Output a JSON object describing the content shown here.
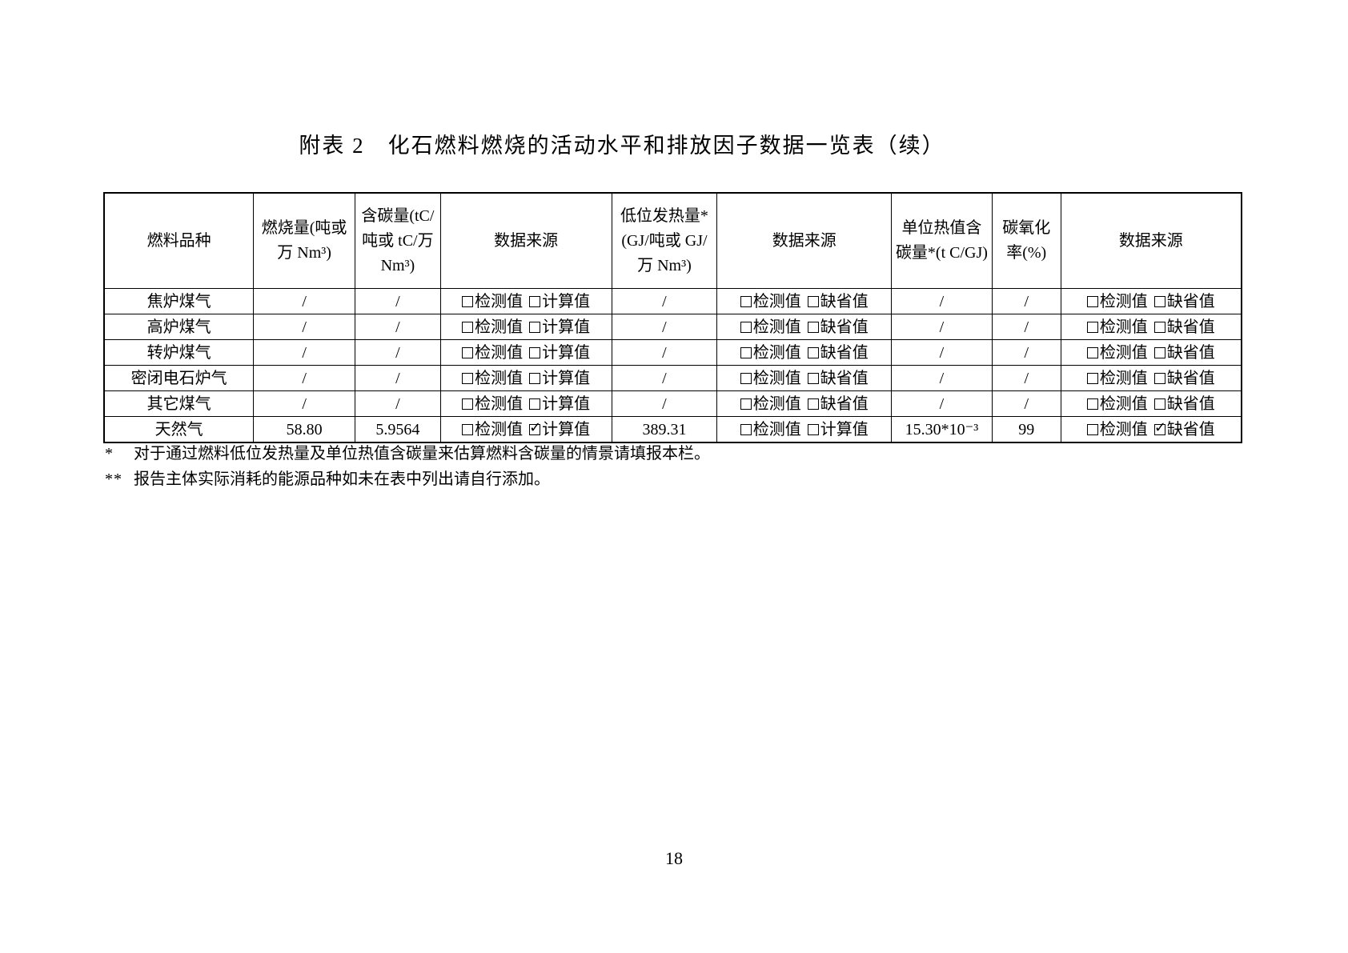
{
  "page": {
    "title": "附表 2　化石燃料燃烧的活动水平和排放因子数据一览表（续）",
    "page_number": "18"
  },
  "table": {
    "headers": [
      "燃料品种",
      "燃烧量(吨或万 Nm³)",
      "含碳量(tC/吨或 tC/万 Nm³)",
      "数据来源",
      "低位发热量*(GJ/吨或 GJ/万 Nm³)",
      "数据来源",
      "单位热值含碳量*(t C/GJ)",
      "碳氧化率(%)",
      "数据来源"
    ],
    "rows": [
      {
        "cells": [
          {
            "type": "text",
            "value": "焦炉煤气"
          },
          {
            "type": "text",
            "value": "/"
          },
          {
            "type": "text",
            "value": "/"
          },
          {
            "type": "checks",
            "options": [
              {
                "label": "检测值",
                "checked": false
              },
              {
                "label": "计算值",
                "checked": false
              }
            ]
          },
          {
            "type": "text",
            "value": "/"
          },
          {
            "type": "checks",
            "options": [
              {
                "label": "检测值",
                "checked": false
              },
              {
                "label": "缺省值",
                "checked": false
              }
            ]
          },
          {
            "type": "text",
            "value": "/"
          },
          {
            "type": "text",
            "value": "/"
          },
          {
            "type": "checks",
            "options": [
              {
                "label": "检测值",
                "checked": false
              },
              {
                "label": "缺省值",
                "checked": false
              }
            ]
          }
        ]
      },
      {
        "cells": [
          {
            "type": "text",
            "value": "高炉煤气"
          },
          {
            "type": "text",
            "value": "/"
          },
          {
            "type": "text",
            "value": "/"
          },
          {
            "type": "checks",
            "options": [
              {
                "label": "检测值",
                "checked": false
              },
              {
                "label": "计算值",
                "checked": false
              }
            ]
          },
          {
            "type": "text",
            "value": "/"
          },
          {
            "type": "checks",
            "options": [
              {
                "label": "检测值",
                "checked": false
              },
              {
                "label": "缺省值",
                "checked": false
              }
            ]
          },
          {
            "type": "text",
            "value": "/"
          },
          {
            "type": "text",
            "value": "/"
          },
          {
            "type": "checks",
            "options": [
              {
                "label": "检测值",
                "checked": false
              },
              {
                "label": "缺省值",
                "checked": false
              }
            ]
          }
        ]
      },
      {
        "cells": [
          {
            "type": "text",
            "value": "转炉煤气"
          },
          {
            "type": "text",
            "value": "/"
          },
          {
            "type": "text",
            "value": "/"
          },
          {
            "type": "checks",
            "options": [
              {
                "label": "检测值",
                "checked": false
              },
              {
                "label": "计算值",
                "checked": false
              }
            ]
          },
          {
            "type": "text",
            "value": "/"
          },
          {
            "type": "checks",
            "options": [
              {
                "label": "检测值",
                "checked": false
              },
              {
                "label": "缺省值",
                "checked": false
              }
            ]
          },
          {
            "type": "text",
            "value": "/"
          },
          {
            "type": "text",
            "value": "/"
          },
          {
            "type": "checks",
            "options": [
              {
                "label": "检测值",
                "checked": false
              },
              {
                "label": "缺省值",
                "checked": false
              }
            ]
          }
        ]
      },
      {
        "cells": [
          {
            "type": "text",
            "value": "密闭电石炉气"
          },
          {
            "type": "text",
            "value": "/"
          },
          {
            "type": "text",
            "value": "/"
          },
          {
            "type": "checks",
            "options": [
              {
                "label": "检测值",
                "checked": false
              },
              {
                "label": "计算值",
                "checked": false
              }
            ]
          },
          {
            "type": "text",
            "value": "/"
          },
          {
            "type": "checks",
            "options": [
              {
                "label": "检测值",
                "checked": false
              },
              {
                "label": "缺省值",
                "checked": false
              }
            ]
          },
          {
            "type": "text",
            "value": "/"
          },
          {
            "type": "text",
            "value": "/"
          },
          {
            "type": "checks",
            "options": [
              {
                "label": "检测值",
                "checked": false
              },
              {
                "label": "缺省值",
                "checked": false
              }
            ]
          }
        ]
      },
      {
        "cells": [
          {
            "type": "text",
            "value": "其它煤气"
          },
          {
            "type": "text",
            "value": "/"
          },
          {
            "type": "text",
            "value": "/"
          },
          {
            "type": "checks",
            "options": [
              {
                "label": "检测值",
                "checked": false
              },
              {
                "label": "计算值",
                "checked": false
              }
            ]
          },
          {
            "type": "text",
            "value": "/"
          },
          {
            "type": "checks",
            "options": [
              {
                "label": "检测值",
                "checked": false
              },
              {
                "label": "缺省值",
                "checked": false
              }
            ]
          },
          {
            "type": "text",
            "value": "/"
          },
          {
            "type": "text",
            "value": "/"
          },
          {
            "type": "checks",
            "options": [
              {
                "label": "检测值",
                "checked": false
              },
              {
                "label": "缺省值",
                "checked": false
              }
            ]
          }
        ]
      },
      {
        "cells": [
          {
            "type": "text",
            "value": "天然气"
          },
          {
            "type": "text",
            "value": "58.80"
          },
          {
            "type": "text",
            "value": "5.9564"
          },
          {
            "type": "checks",
            "options": [
              {
                "label": "检测值",
                "checked": false
              },
              {
                "label": "计算值",
                "checked": true
              }
            ]
          },
          {
            "type": "text",
            "value": "389.31"
          },
          {
            "type": "checks",
            "options": [
              {
                "label": "检测值",
                "checked": false
              },
              {
                "label": "计算值",
                "checked": false
              }
            ]
          },
          {
            "type": "text",
            "value": "15.30*10⁻³"
          },
          {
            "type": "text",
            "value": "99"
          },
          {
            "type": "checks",
            "options": [
              {
                "label": "检测值",
                "checked": false
              },
              {
                "label": "缺省值",
                "checked": true
              }
            ]
          }
        ]
      }
    ]
  },
  "footnotes": [
    {
      "marker": "*",
      "text": "对于通过燃料低位发热量及单位热值含碳量来估算燃料含碳量的情景请填报本栏。"
    },
    {
      "marker": "**",
      "text": "报告主体实际消耗的能源品种如未在表中列出请自行添加。"
    }
  ]
}
